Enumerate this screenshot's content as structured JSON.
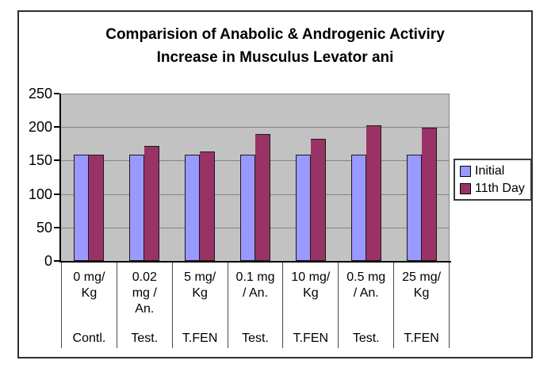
{
  "page": {
    "background": "#ffffff"
  },
  "chart": {
    "title_line1": "Comparision of Anabolic & Androgenic Activiry",
    "title_line2": "Increase in Musculus Levator ani"
  },
  "colors": {
    "plot_background": "#C2C2C2",
    "gridline": "#848484",
    "axis": "#000000",
    "frame_border": "#2E2E2E",
    "initial_series": "#9999FF",
    "day11_series": "#993366"
  },
  "chart_data": {
    "type": "bar",
    "title": "Comparision of Anabolic & Androgenic Activiry Increase in Musculus Levator ani",
    "xlabel": "",
    "ylabel": "",
    "ylim": [
      0,
      250
    ],
    "yticks": [
      0,
      50,
      100,
      150,
      200,
      250
    ],
    "grid": true,
    "legend_position": "right",
    "plot_bg": "#C0C0C0",
    "categories": [
      "0 mg/ Kg",
      "0.02 mg / An.",
      "5 mg/ Kg",
      "0.1 mg / An.",
      "10 mg/ Kg",
      "0.5 mg / An.",
      "25 mg/ Kg"
    ],
    "category_lines": [
      [
        "0 mg/",
        "Kg"
      ],
      [
        "0.02",
        "mg /",
        "An."
      ],
      [
        "5 mg/",
        "Kg"
      ],
      [
        "0.1 mg",
        "/ An."
      ],
      [
        "10 mg/",
        "Kg"
      ],
      [
        "0.5 mg",
        "/ An."
      ],
      [
        "25 mg/",
        "Kg"
      ]
    ],
    "group_labels": [
      "Contl.",
      "Test.",
      "T.FEN",
      "Test.",
      "T.FEN",
      "Test.",
      "T.FEN"
    ],
    "series": [
      {
        "name": "Initial",
        "color": "#9999FF",
        "values": [
          159,
          159,
          159,
          159,
          159,
          159,
          159
        ]
      },
      {
        "name": "11th Day",
        "color": "#993366",
        "values": [
          159,
          172,
          164,
          190,
          183,
          203,
          199
        ]
      }
    ]
  }
}
